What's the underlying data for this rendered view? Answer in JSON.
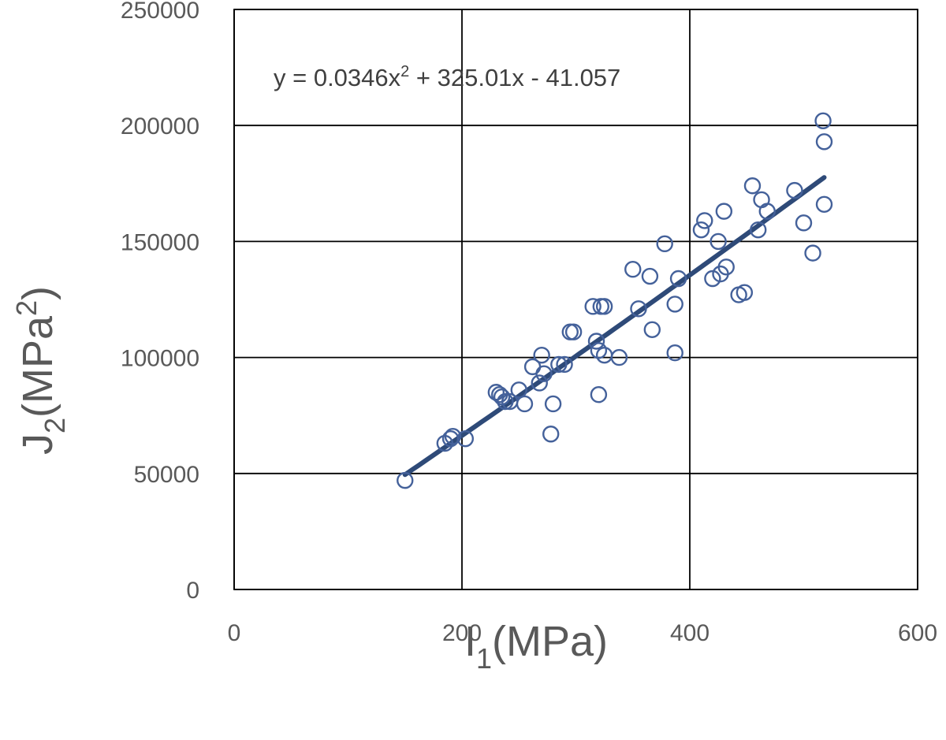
{
  "chart_data": {
    "type": "scatter",
    "xlim": [
      0,
      600
    ],
    "ylim": [
      0,
      250000
    ],
    "x_ticks": [
      0,
      200,
      400,
      600
    ],
    "y_ticks": [
      0,
      50000,
      100000,
      150000,
      200000,
      250000
    ],
    "x_tick_labels": [
      "0",
      "200",
      "400",
      "600"
    ],
    "y_tick_labels": [
      "0",
      "50000",
      "100000",
      "150000",
      "200000",
      "250000"
    ],
    "xlabel": {
      "main": "I",
      "sub": "1",
      "rest": "(MPa)"
    },
    "ylabel": {
      "main": "J",
      "sub": "2",
      "rest": "(MPa",
      "sup": "2",
      "tail": ")"
    },
    "grid": true,
    "legend": "none",
    "marker_color": "#44619a",
    "trend_color": "#2e4a78",
    "trendline": {
      "type": "polynomial",
      "coefficients": [
        0.0346,
        325.01,
        -41.057
      ],
      "x_range": [
        150,
        518
      ],
      "equation": {
        "lhs": "y = 0.0346x",
        "sup": "2",
        "rhs": " + 325.01x - 41.057"
      }
    },
    "points": [
      [
        150,
        47000
      ],
      [
        185,
        63000
      ],
      [
        190,
        65000
      ],
      [
        192,
        66000
      ],
      [
        203,
        65000
      ],
      [
        230,
        85000
      ],
      [
        233,
        84000
      ],
      [
        235,
        83000
      ],
      [
        238,
        81000
      ],
      [
        242,
        81000
      ],
      [
        250,
        86000
      ],
      [
        255,
        80000
      ],
      [
        262,
        96000
      ],
      [
        268,
        89000
      ],
      [
        270,
        101000
      ],
      [
        272,
        93000
      ],
      [
        278,
        67000
      ],
      [
        280,
        80000
      ],
      [
        285,
        97000
      ],
      [
        290,
        97000
      ],
      [
        295,
        111000
      ],
      [
        298,
        111000
      ],
      [
        315,
        122000
      ],
      [
        318,
        107000
      ],
      [
        320,
        84000
      ],
      [
        320,
        103000
      ],
      [
        322,
        122000
      ],
      [
        325,
        122000
      ],
      [
        325,
        101000
      ],
      [
        338,
        100000
      ],
      [
        350,
        138000
      ],
      [
        355,
        121000
      ],
      [
        365,
        135000
      ],
      [
        367,
        112000
      ],
      [
        378,
        149000
      ],
      [
        387,
        123000
      ],
      [
        387,
        102000
      ],
      [
        390,
        134000
      ],
      [
        410,
        155000
      ],
      [
        413,
        159000
      ],
      [
        420,
        134000
      ],
      [
        425,
        150000
      ],
      [
        427,
        136000
      ],
      [
        430,
        163000
      ],
      [
        432,
        139000
      ],
      [
        443,
        127000
      ],
      [
        448,
        128000
      ],
      [
        455,
        174000
      ],
      [
        460,
        155000
      ],
      [
        463,
        168000
      ],
      [
        468,
        163000
      ],
      [
        492,
        172000
      ],
      [
        500,
        158000
      ],
      [
        508,
        145000
      ],
      [
        517,
        202000
      ],
      [
        518,
        193000
      ],
      [
        518,
        166000
      ]
    ]
  }
}
